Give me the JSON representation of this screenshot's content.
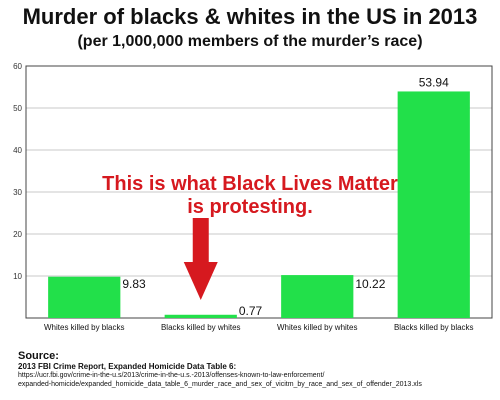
{
  "chart_data": {
    "type": "bar",
    "title": "Murder of blacks & whites in the US in 2013",
    "subtitle": "(per 1,000,000 members of the murder’s race)",
    "categories": [
      "Whites killed by blacks",
      "Blacks killed by whites",
      "Whites killed by whites",
      "Blacks killed by blacks"
    ],
    "values": [
      9.83,
      0.77,
      10.22,
      53.94
    ],
    "value_labels": [
      "9.83",
      "0.77",
      "10.22",
      "53.94"
    ],
    "ylim": [
      0,
      60
    ],
    "yticks": [
      10,
      20,
      30,
      40,
      50,
      60
    ],
    "grid": true,
    "bar_color": "#22e04a",
    "annotation": {
      "line1": "This is what Black Lives Matter",
      "line2": "is protesting.",
      "color": "#d6191f"
    }
  },
  "source": {
    "heading": "Source:",
    "name": "2013 FBI Crime Report, Expanded Homicide Data Table 6:",
    "url_line1": "https://ucr.fbi.gov/crime-in-the-u.s/2013/crime-in-the-u.s.-2013/offenses-known-to-law-enforcement/",
    "url_line2": "expanded-homicide/expanded_homicide_data_table_6_murder_race_and_sex_of_vicitm_by_race_and_sex_of_offender_2013.xls"
  }
}
